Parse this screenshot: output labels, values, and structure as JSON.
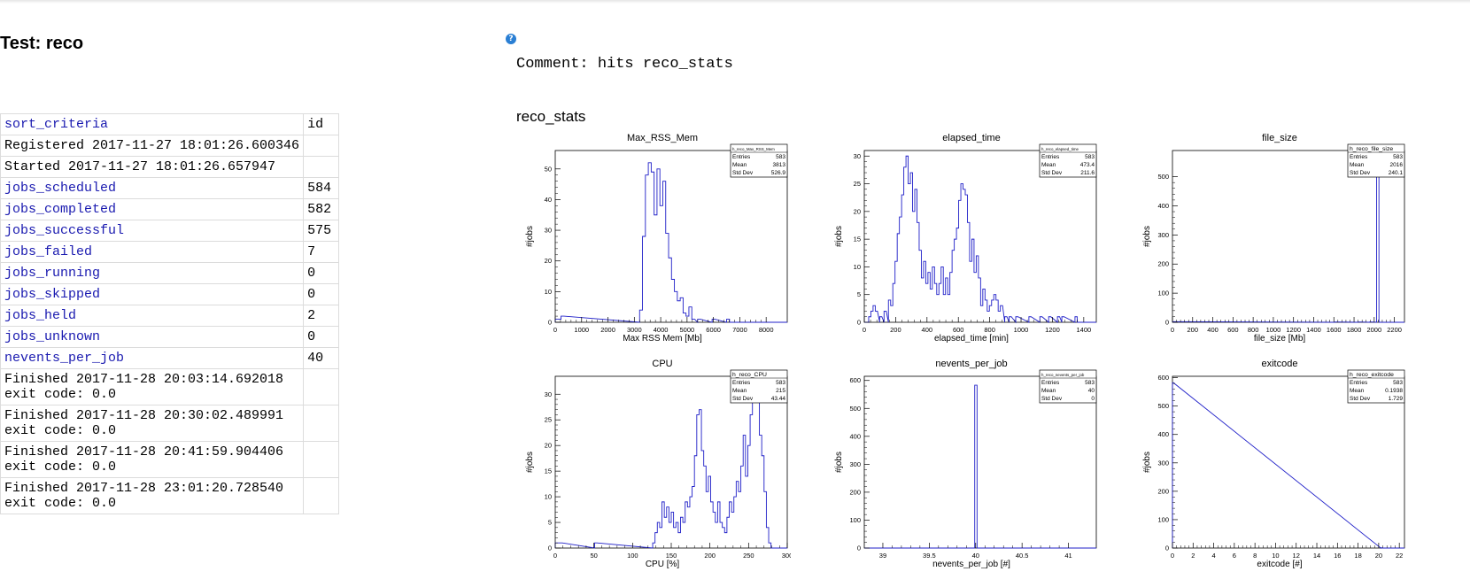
{
  "page": {
    "title": "Test: reco",
    "help_icon": "question-circle-icon",
    "comment": "Comment: hits reco_stats",
    "section_title": "reco_stats"
  },
  "properties": [
    {
      "key": "sort_criteria",
      "value": "id",
      "link": true
    },
    {
      "key": "Registered 2017-11-27 18:01:26.600346",
      "value": "",
      "link": false
    },
    {
      "key": "Started 2017-11-27 18:01:26.657947",
      "value": "",
      "link": false
    },
    {
      "key": "jobs_scheduled",
      "value": "584",
      "link": true
    },
    {
      "key": "jobs_completed",
      "value": "582",
      "link": true
    },
    {
      "key": "jobs_successful",
      "value": "575",
      "link": true
    },
    {
      "key": "jobs_failed",
      "value": "7",
      "link": true
    },
    {
      "key": "jobs_running",
      "value": "0",
      "link": true
    },
    {
      "key": "jobs_skipped",
      "value": "0",
      "link": true
    },
    {
      "key": "jobs_held",
      "value": "2",
      "link": true
    },
    {
      "key": "jobs_unknown",
      "value": "0",
      "link": true
    },
    {
      "key": "nevents_per_job",
      "value": "40",
      "link": true
    },
    {
      "key": "Finished 2017-11-28 20:03:14.692018\nexit code: 0.0",
      "value": "",
      "link": false
    },
    {
      "key": "Finished 2017-11-28 20:30:02.489991\nexit code: 0.0",
      "value": "",
      "link": false
    },
    {
      "key": "Finished 2017-11-28 20:41:59.904406\nexit code: 0.0",
      "value": "",
      "link": false
    },
    {
      "key": "Finished 2017-11-28 23:01:20.728540\nexit code: 0.0",
      "value": "",
      "link": false
    }
  ],
  "chart_data": [
    {
      "type": "histogram",
      "title": "Max_RSS_Mem",
      "xlabel": "Max  RSS  Mem [Mb]",
      "ylabel": "#jobs",
      "xlim": [
        0,
        8800
      ],
      "ylim": [
        0,
        56
      ],
      "xticks": [
        0,
        1000,
        2000,
        3000,
        4000,
        5000,
        6000,
        7000,
        8000
      ],
      "yticks": [
        0,
        10,
        20,
        30,
        40,
        50
      ],
      "stats": {
        "name": "h_reco_Max_RSS_Mem",
        "Entries": "583",
        "Mean": "3813",
        "Std Dev": "526.9"
      },
      "stat_labels": [
        "Entries",
        "Mean",
        "Std Dev"
      ],
      "bin_width": 110,
      "bins": [
        [
          0,
          1
        ],
        [
          110,
          1
        ],
        [
          220,
          2
        ],
        [
          3200,
          4
        ],
        [
          3310,
          28
        ],
        [
          3420,
          48
        ],
        [
          3530,
          52
        ],
        [
          3640,
          49
        ],
        [
          3750,
          35
        ],
        [
          3860,
          50
        ],
        [
          3970,
          38
        ],
        [
          4080,
          46
        ],
        [
          4190,
          29
        ],
        [
          4300,
          21
        ],
        [
          4410,
          14
        ],
        [
          4520,
          10
        ],
        [
          4630,
          7
        ],
        [
          4740,
          8
        ],
        [
          4850,
          3
        ],
        [
          4960,
          2
        ],
        [
          5070,
          5
        ],
        [
          5180,
          1
        ],
        [
          5400,
          1
        ],
        [
          5950,
          1
        ],
        [
          6500,
          1
        ]
      ]
    },
    {
      "type": "histogram",
      "title": "elapsed_time",
      "xlabel": "elapsed_time [min]",
      "ylabel": "#jobs",
      "xlim": [
        0,
        1480
      ],
      "ylim": [
        0,
        31
      ],
      "xticks": [
        0,
        200,
        400,
        600,
        800,
        1000,
        1200,
        1400
      ],
      "yticks": [
        0,
        5,
        10,
        15,
        20,
        25,
        30
      ],
      "stats": {
        "name": "h_reco_elapsed_time",
        "Entries": "583",
        "Mean": "473.4",
        "Std Dev": "211.6"
      },
      "stat_labels": [
        "Entries",
        "Mean",
        "Std Dev"
      ],
      "bin_width": 14,
      "bins": [
        [
          28,
          1
        ],
        [
          42,
          2
        ],
        [
          56,
          3
        ],
        [
          70,
          2
        ],
        [
          98,
          1
        ],
        [
          126,
          2
        ],
        [
          154,
          4
        ],
        [
          168,
          3
        ],
        [
          182,
          7
        ],
        [
          196,
          11
        ],
        [
          210,
          16
        ],
        [
          224,
          19
        ],
        [
          238,
          23
        ],
        [
          252,
          28
        ],
        [
          266,
          30
        ],
        [
          280,
          25
        ],
        [
          294,
          27
        ],
        [
          308,
          20
        ],
        [
          322,
          24
        ],
        [
          336,
          18
        ],
        [
          350,
          13
        ],
        [
          364,
          8
        ],
        [
          378,
          11
        ],
        [
          392,
          7
        ],
        [
          406,
          9
        ],
        [
          420,
          6
        ],
        [
          434,
          10
        ],
        [
          448,
          7
        ],
        [
          462,
          5
        ],
        [
          476,
          7
        ],
        [
          490,
          10
        ],
        [
          504,
          5
        ],
        [
          518,
          8
        ],
        [
          532,
          5
        ],
        [
          546,
          9
        ],
        [
          560,
          13
        ],
        [
          574,
          15
        ],
        [
          588,
          17
        ],
        [
          602,
          22
        ],
        [
          616,
          25
        ],
        [
          630,
          24
        ],
        [
          644,
          23
        ],
        [
          658,
          18
        ],
        [
          672,
          11
        ],
        [
          686,
          15
        ],
        [
          700,
          9
        ],
        [
          714,
          12
        ],
        [
          728,
          8
        ],
        [
          742,
          3
        ],
        [
          756,
          6
        ],
        [
          770,
          4
        ],
        [
          784,
          2
        ],
        [
          798,
          3
        ],
        [
          812,
          4
        ],
        [
          826,
          5
        ],
        [
          840,
          4
        ],
        [
          854,
          2
        ],
        [
          868,
          3
        ],
        [
          896,
          1
        ],
        [
          924,
          1
        ],
        [
          966,
          1
        ],
        [
          1050,
          1
        ],
        [
          1120,
          1
        ],
        [
          1176,
          1
        ],
        [
          1232,
          1
        ],
        [
          1260,
          1
        ],
        [
          1344,
          1
        ]
      ]
    },
    {
      "type": "histogram",
      "title": "file_size",
      "xlabel": "file_size [Mb]",
      "ylabel": "#jobs",
      "xlim": [
        0,
        2300
      ],
      "ylim": [
        0,
        590
      ],
      "xticks": [
        0,
        200,
        400,
        600,
        800,
        1000,
        1200,
        1400,
        1600,
        1800,
        2000,
        2200
      ],
      "yticks": [
        0,
        100,
        200,
        300,
        400,
        500
      ],
      "stats": {
        "name": "h_reco_file_size",
        "Entries": "583",
        "Mean": "2016",
        "Std Dev": "240.1"
      },
      "stat_labels": [
        "Entries",
        "Mean",
        "Std Dev"
      ],
      "bin_width": 23,
      "bins": [
        [
          0,
          2
        ],
        [
          1610,
          1
        ],
        [
          1840,
          1
        ],
        [
          1955,
          1
        ],
        [
          2024,
          575
        ]
      ]
    },
    {
      "type": "histogram",
      "title": "CPU",
      "xlabel": "CPU [%]",
      "ylabel": "#jobs",
      "xlim": [
        0,
        300
      ],
      "ylim": [
        0,
        33.5
      ],
      "xticks": [
        0,
        50,
        100,
        150,
        200,
        250,
        300
      ],
      "yticks": [
        0,
        5,
        10,
        15,
        20,
        25,
        30
      ],
      "stats": {
        "name": "h_reco_CPU",
        "Entries": "583",
        "Mean": "215",
        "Std Dev": "43.44"
      },
      "stat_labels": [
        "Entries",
        "Mean",
        "Std Dev"
      ],
      "bin_width": 3,
      "bins": [
        [
          0,
          1
        ],
        [
          3,
          1
        ],
        [
          6,
          1
        ],
        [
          51,
          1
        ],
        [
          126,
          1
        ],
        [
          129,
          3
        ],
        [
          132,
          5
        ],
        [
          135,
          4
        ],
        [
          138,
          9
        ],
        [
          141,
          6
        ],
        [
          144,
          8
        ],
        [
          147,
          5
        ],
        [
          150,
          7
        ],
        [
          153,
          4
        ],
        [
          156,
          5
        ],
        [
          159,
          3
        ],
        [
          162,
          6
        ],
        [
          165,
          5
        ],
        [
          168,
          9
        ],
        [
          171,
          8
        ],
        [
          174,
          10
        ],
        [
          177,
          12
        ],
        [
          180,
          18
        ],
        [
          183,
          26
        ],
        [
          186,
          27
        ],
        [
          189,
          19
        ],
        [
          192,
          16
        ],
        [
          195,
          11
        ],
        [
          198,
          14
        ],
        [
          201,
          9
        ],
        [
          204,
          7
        ],
        [
          207,
          5
        ],
        [
          210,
          9
        ],
        [
          213,
          5
        ],
        [
          216,
          4
        ],
        [
          219,
          3
        ],
        [
          222,
          6
        ],
        [
          225,
          9
        ],
        [
          228,
          7
        ],
        [
          231,
          10
        ],
        [
          234,
          13
        ],
        [
          237,
          11
        ],
        [
          240,
          16
        ],
        [
          243,
          22
        ],
        [
          246,
          14
        ],
        [
          249,
          20
        ],
        [
          252,
          26
        ],
        [
          255,
          31
        ],
        [
          258,
          29
        ],
        [
          261,
          33
        ],
        [
          264,
          22
        ],
        [
          267,
          18
        ],
        [
          270,
          11
        ],
        [
          273,
          4
        ],
        [
          276,
          1
        ]
      ]
    },
    {
      "type": "histogram",
      "title": "nevents_per_job",
      "xlabel": "nevents_per_job [#]",
      "ylabel": "#jobs",
      "xlim": [
        38.8,
        41.3
      ],
      "ylim": [
        0,
        615
      ],
      "xticks": [
        39,
        39.5,
        40,
        40.5,
        41
      ],
      "yticks": [
        0,
        100,
        200,
        300,
        400,
        500,
        600
      ],
      "stats": {
        "name": "h_reco_nevents_per_job",
        "Entries": "583",
        "Mean": "40",
        "Std Dev": "0"
      },
      "stat_labels": [
        "Entries",
        "Mean",
        "Std Dev"
      ],
      "bin_width": 0.025,
      "bins": [
        [
          39.99,
          583
        ]
      ]
    },
    {
      "type": "histogram",
      "title": "exitcode",
      "xlabel": "exitcode [#]",
      "ylabel": "#jobs",
      "xlim": [
        0,
        22.5
      ],
      "ylim": [
        0,
        605
      ],
      "xticks": [
        0,
        2,
        4,
        6,
        8,
        10,
        12,
        14,
        16,
        18,
        20,
        22
      ],
      "yticks": [
        0,
        100,
        200,
        300,
        400,
        500,
        600
      ],
      "stats": {
        "name": "h_reco_exitcode",
        "Entries": "583",
        "Mean": "0.1938",
        "Std Dev": "1.729"
      },
      "stat_labels": [
        "Entries",
        "Mean",
        "Std Dev"
      ],
      "bin_width": 0.1,
      "bins": [
        [
          0,
          582
        ],
        [
          20.2,
          1
        ]
      ]
    }
  ]
}
